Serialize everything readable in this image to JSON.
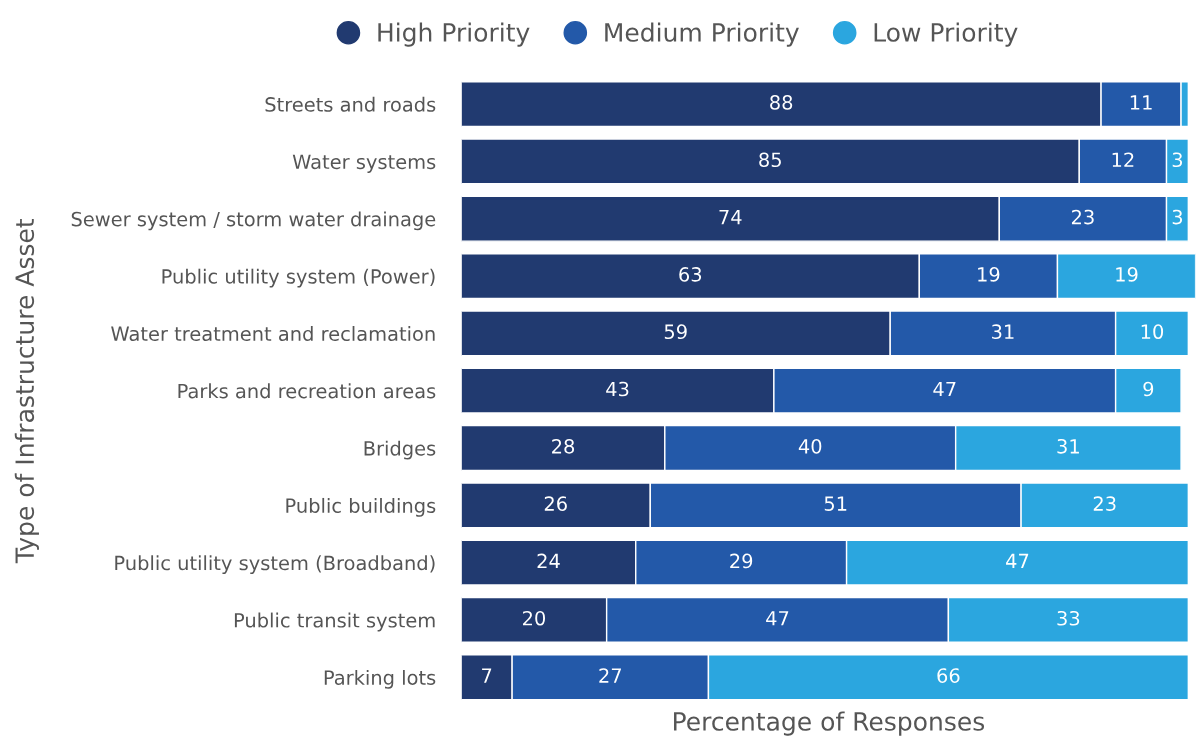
{
  "chart_data": {
    "type": "bar",
    "orientation": "horizontal",
    "stacked": true,
    "xlabel": "Percentage of Responses",
    "ylabel": "Type of Infrastructure Asset",
    "categories": [
      "Streets and roads",
      "Water systems",
      "Sewer system / storm water drainage",
      "Public utility system (Power)",
      "Water treatment and reclamation",
      "Parks and recreation areas",
      "Bridges",
      "Public buildings",
      "Public utility system (Broadband)",
      "Public transit system",
      "Parking lots"
    ],
    "series": [
      {
        "name": "High Priority",
        "color": "#213a70",
        "values": [
          88,
          85,
          74,
          63,
          59,
          43,
          28,
          26,
          24,
          20,
          7
        ],
        "value_labels": [
          "88",
          "85",
          "74",
          "63",
          "59",
          "43",
          "28",
          "26",
          "24",
          "20",
          "7"
        ]
      },
      {
        "name": "Medium Priority",
        "color": "#2359a9",
        "values": [
          11,
          12,
          23,
          19,
          31,
          47,
          40,
          51,
          29,
          47,
          27
        ],
        "value_labels": [
          "11",
          "12",
          "23",
          "19",
          "31",
          "47",
          "40",
          "51",
          "29",
          "47",
          "27"
        ]
      },
      {
        "name": "Low Priority",
        "color": "#2ba6df",
        "values": [
          1,
          3,
          3,
          19,
          10,
          9,
          31,
          23,
          47,
          33,
          66
        ],
        "value_labels": [
          null,
          "3",
          "3",
          "19",
          "10",
          "9",
          "31",
          "23",
          "47",
          "33",
          "66"
        ]
      }
    ],
    "legend": "top",
    "grid": false,
    "tick_labels": "y",
    "marker": "circle"
  }
}
